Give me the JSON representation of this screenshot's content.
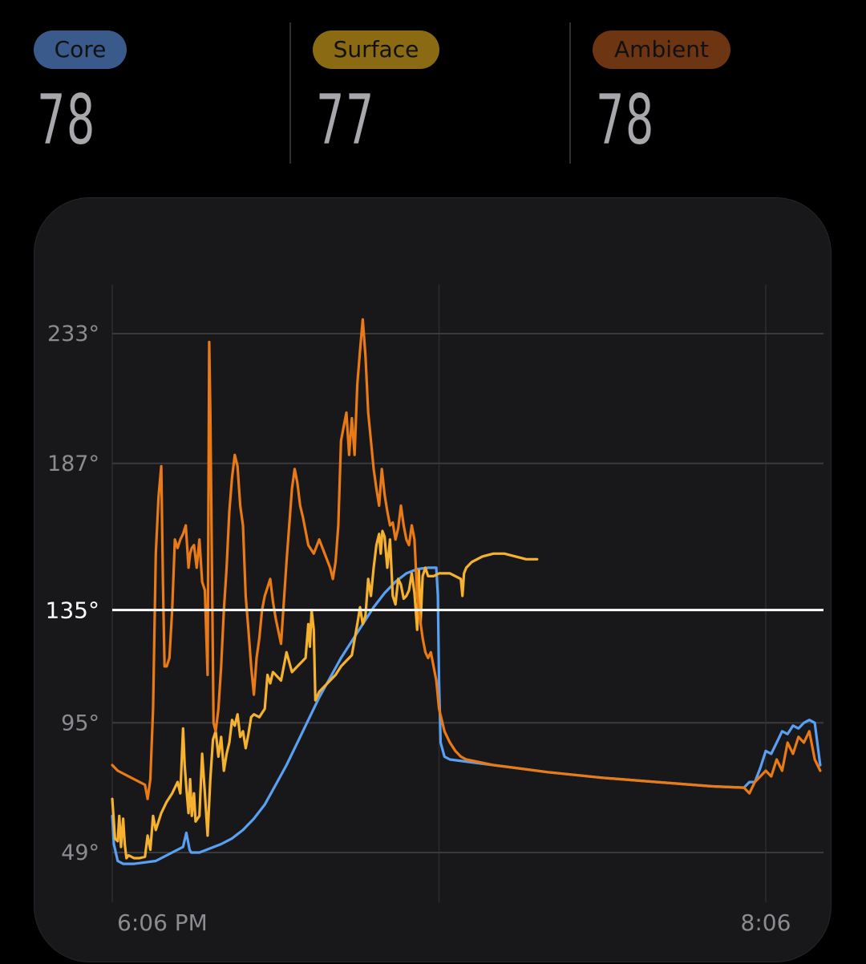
{
  "stats": [
    {
      "label": "Core",
      "value": "78",
      "pill_color": "#3a5a8c"
    },
    {
      "label": "Surface",
      "value": "77",
      "pill_color": "#8a6a12"
    },
    {
      "label": "Ambient",
      "value": "78",
      "pill_color": "#6e3512"
    }
  ],
  "colors": {
    "core": "#5aa0f2",
    "surface": "#f6b22e",
    "ambient": "#ea7a16",
    "target_line": "#ffffff",
    "grid": "#3a3a3e",
    "tick_text": "#8c8c90"
  },
  "chart_data": {
    "type": "line",
    "title": "",
    "xlabel": "",
    "ylabel": "",
    "ylim": [
      38,
      255
    ],
    "y_ticks": [
      {
        "value": 49,
        "label": "49°"
      },
      {
        "value": 95,
        "label": "95°"
      },
      {
        "value": 187,
        "label": "187°"
      },
      {
        "value": 233,
        "label": "233°"
      }
    ],
    "x_tick_labels": [
      "6:06 PM",
      "8:06"
    ],
    "x_unit": "minutes after 6:06 PM",
    "xlim": [
      0,
      130
    ],
    "x_tick_positions": [
      0,
      120
    ],
    "x_gridlines": [
      0,
      60,
      120
    ],
    "target": {
      "value": 135,
      "label": "135°"
    },
    "grid": true,
    "legend": "top",
    "series": [
      {
        "name": "Core",
        "key": "core",
        "points": [
          [
            0,
            62
          ],
          [
            0.3,
            52
          ],
          [
            1,
            46
          ],
          [
            2,
            45
          ],
          [
            4,
            45
          ],
          [
            6,
            45.5
          ],
          [
            8,
            46
          ],
          [
            10,
            48
          ],
          [
            12,
            50
          ],
          [
            13,
            51
          ],
          [
            13.6,
            56
          ],
          [
            14,
            52
          ],
          [
            14.2,
            50
          ],
          [
            14.5,
            49
          ],
          [
            16,
            49
          ],
          [
            18,
            50.5
          ],
          [
            20,
            52
          ],
          [
            22,
            54
          ],
          [
            24,
            57
          ],
          [
            26,
            61
          ],
          [
            28,
            66
          ],
          [
            30,
            73
          ],
          [
            32,
            80
          ],
          [
            34,
            88
          ],
          [
            36,
            96
          ],
          [
            38,
            104
          ],
          [
            40,
            111
          ],
          [
            42,
            118
          ],
          [
            44,
            124
          ],
          [
            46,
            130
          ],
          [
            48,
            136
          ],
          [
            50,
            141
          ],
          [
            52,
            145
          ],
          [
            54,
            148
          ],
          [
            56,
            149.5
          ],
          [
            58,
            150
          ],
          [
            59.5,
            150
          ],
          [
            59.8,
            140
          ],
          [
            60,
            110
          ],
          [
            60.3,
            88
          ],
          [
            61,
            83
          ],
          [
            62,
            82
          ],
          [
            70,
            80
          ],
          [
            80,
            77.5
          ],
          [
            90,
            75.5
          ],
          [
            100,
            74
          ],
          [
            110,
            72.5
          ],
          [
            116,
            72
          ],
          [
            117,
            74
          ],
          [
            118,
            74
          ],
          [
            119,
            79
          ],
          [
            120,
            85
          ],
          [
            121,
            84
          ],
          [
            122,
            88
          ],
          [
            123,
            92
          ],
          [
            124,
            91
          ],
          [
            125,
            94
          ],
          [
            126,
            93
          ],
          [
            127,
            95
          ],
          [
            128,
            96
          ],
          [
            129,
            95
          ],
          [
            130,
            80
          ]
        ]
      },
      {
        "name": "Surface",
        "key": "surface",
        "points": [
          [
            0,
            68
          ],
          [
            0.5,
            54
          ],
          [
            1,
            53
          ],
          [
            1.3,
            62
          ],
          [
            1.6,
            51
          ],
          [
            2,
            61
          ],
          [
            2.3,
            52
          ],
          [
            2.6,
            47
          ],
          [
            3,
            48
          ],
          [
            4,
            47
          ],
          [
            5,
            47
          ],
          [
            6,
            47.5
          ],
          [
            6.5,
            55
          ],
          [
            7,
            50
          ],
          [
            7.5,
            62
          ],
          [
            8,
            57
          ],
          [
            9,
            63
          ],
          [
            10,
            67
          ],
          [
            11,
            70
          ],
          [
            12,
            74
          ],
          [
            12.5,
            70
          ],
          [
            13,
            93
          ],
          [
            13.3,
            80
          ],
          [
            13.6,
            72
          ],
          [
            14,
            63
          ],
          [
            14.3,
            75
          ],
          [
            14.6,
            62
          ],
          [
            15,
            70
          ],
          [
            15.3,
            60
          ],
          [
            16,
            62
          ],
          [
            16.5,
            84
          ],
          [
            17,
            70
          ],
          [
            17.5,
            55
          ],
          [
            18,
            75
          ],
          [
            18.5,
            89
          ],
          [
            19,
            92
          ],
          [
            19.5,
            83
          ],
          [
            20,
            90
          ],
          [
            20.5,
            78
          ],
          [
            21,
            84
          ],
          [
            21.5,
            88
          ],
          [
            22,
            96
          ],
          [
            22.5,
            94
          ],
          [
            23,
            98
          ],
          [
            23.5,
            90
          ],
          [
            24,
            92
          ],
          [
            24.5,
            86
          ],
          [
            25,
            91
          ],
          [
            25.5,
            97
          ],
          [
            26,
            98
          ],
          [
            27,
            97
          ],
          [
            28,
            100
          ],
          [
            28.5,
            112
          ],
          [
            29,
            109
          ],
          [
            29.5,
            113
          ],
          [
            30,
            112
          ],
          [
            31,
            110
          ],
          [
            32,
            120
          ],
          [
            33,
            113
          ],
          [
            34,
            115
          ],
          [
            35,
            117
          ],
          [
            35.5,
            118
          ],
          [
            36,
            130
          ],
          [
            36.3,
            122
          ],
          [
            36.6,
            135
          ],
          [
            37,
            128
          ],
          [
            37.3,
            103
          ],
          [
            38,
            106
          ],
          [
            39,
            108
          ],
          [
            40,
            110
          ],
          [
            41,
            112
          ],
          [
            42,
            115
          ],
          [
            43,
            117
          ],
          [
            44,
            119
          ],
          [
            45,
            130
          ],
          [
            45.5,
            136
          ],
          [
            46,
            130
          ],
          [
            46.5,
            133
          ],
          [
            47,
            146
          ],
          [
            47.5,
            140
          ],
          [
            48,
            150
          ],
          [
            48.5,
            158
          ],
          [
            49,
            162
          ],
          [
            49.3,
            155
          ],
          [
            49.6,
            163
          ],
          [
            50,
            161
          ],
          [
            50.5,
            150
          ],
          [
            51,
            160
          ],
          [
            51.5,
            140
          ],
          [
            52,
            137
          ],
          [
            52.5,
            146
          ],
          [
            53,
            144
          ],
          [
            53.5,
            139
          ],
          [
            54,
            140
          ],
          [
            54.5,
            142
          ],
          [
            55,
            148
          ],
          [
            55.5,
            141
          ],
          [
            56,
            128
          ],
          [
            56.3,
            149
          ],
          [
            56.6,
            130
          ],
          [
            57,
            147
          ],
          [
            57.5,
            150
          ],
          [
            58,
            147
          ],
          [
            59,
            147
          ],
          [
            60,
            148
          ],
          [
            61,
            148
          ],
          [
            62,
            148
          ],
          [
            63,
            147
          ],
          [
            64,
            146
          ],
          [
            64.3,
            140
          ],
          [
            64.6,
            148
          ],
          [
            65,
            150
          ],
          [
            66,
            152
          ],
          [
            67,
            153
          ],
          [
            68,
            154
          ],
          [
            70,
            155
          ],
          [
            72,
            155
          ],
          [
            74,
            154
          ],
          [
            76,
            153
          ],
          [
            78,
            153
          ]
        ]
      },
      {
        "name": "Ambient",
        "key": "ambient",
        "points": [
          [
            0,
            80
          ],
          [
            1,
            78
          ],
          [
            2,
            77
          ],
          [
            3,
            76
          ],
          [
            4,
            75
          ],
          [
            5,
            74
          ],
          [
            6,
            73
          ],
          [
            6.5,
            68
          ],
          [
            7,
            75
          ],
          [
            7.5,
            100
          ],
          [
            8,
            155
          ],
          [
            8.5,
            175
          ],
          [
            9,
            186
          ],
          [
            9.3,
            145
          ],
          [
            9.6,
            115
          ],
          [
            10,
            115
          ],
          [
            10.5,
            118
          ],
          [
            11,
            135
          ],
          [
            11.5,
            160
          ],
          [
            12,
            157
          ],
          [
            12.5,
            160
          ],
          [
            13,
            162
          ],
          [
            13.5,
            165
          ],
          [
            14,
            150
          ],
          [
            14.3,
            155
          ],
          [
            14.6,
            157
          ],
          [
            15,
            158
          ],
          [
            15.5,
            150
          ],
          [
            16,
            160
          ],
          [
            16.5,
            145
          ],
          [
            17,
            142
          ],
          [
            17.5,
            112
          ],
          [
            17.8,
            230
          ],
          [
            18,
            205
          ],
          [
            18.3,
            150
          ],
          [
            18.6,
            95
          ],
          [
            19,
            92
          ],
          [
            19.5,
            100
          ],
          [
            20,
            115
          ],
          [
            20.5,
            135
          ],
          [
            21,
            150
          ],
          [
            21.5,
            170
          ],
          [
            22,
            182
          ],
          [
            22.5,
            190
          ],
          [
            23,
            186
          ],
          [
            23.5,
            172
          ],
          [
            24,
            165
          ],
          [
            24.5,
            140
          ],
          [
            25,
            128
          ],
          [
            25.5,
            115
          ],
          [
            26,
            105
          ],
          [
            26.5,
            118
          ],
          [
            27,
            125
          ],
          [
            27.5,
            135
          ],
          [
            28,
            140
          ],
          [
            28.5,
            143
          ],
          [
            29,
            146
          ],
          [
            29.5,
            138
          ],
          [
            30,
            132
          ],
          [
            31,
            123
          ],
          [
            32,
            152
          ],
          [
            32.5,
            165
          ],
          [
            33,
            178
          ],
          [
            33.5,
            185
          ],
          [
            34,
            180
          ],
          [
            34.5,
            172
          ],
          [
            35,
            168
          ],
          [
            35.5,
            163
          ],
          [
            36,
            158
          ],
          [
            37,
            155
          ],
          [
            38,
            160
          ],
          [
            39,
            155
          ],
          [
            40,
            150
          ],
          [
            40.5,
            146
          ],
          [
            41,
            152
          ],
          [
            41.5,
            165
          ],
          [
            42,
            195
          ],
          [
            42.5,
            200
          ],
          [
            43,
            205
          ],
          [
            43.5,
            190
          ],
          [
            44,
            203
          ],
          [
            44.5,
            190
          ],
          [
            45,
            215
          ],
          [
            45.5,
            227
          ],
          [
            46,
            238
          ],
          [
            46.5,
            225
          ],
          [
            47,
            205
          ],
          [
            47.5,
            195
          ],
          [
            48,
            185
          ],
          [
            48.5,
            178
          ],
          [
            49,
            172
          ],
          [
            49.5,
            185
          ],
          [
            50,
            176
          ],
          [
            50.5,
            170
          ],
          [
            51,
            165
          ],
          [
            51.5,
            166
          ],
          [
            52,
            160
          ],
          [
            52.5,
            164
          ],
          [
            53,
            172
          ],
          [
            53.5,
            165
          ],
          [
            54,
            160
          ],
          [
            54.5,
            158
          ],
          [
            55,
            165
          ],
          [
            55.5,
            160
          ],
          [
            56,
            140
          ],
          [
            56.5,
            132
          ],
          [
            57,
            125
          ],
          [
            57.5,
            120
          ],
          [
            58,
            118
          ],
          [
            58.5,
            120
          ],
          [
            59,
            115
          ],
          [
            59.5,
            110
          ],
          [
            60,
            100
          ],
          [
            61,
            92
          ],
          [
            62,
            88
          ],
          [
            63,
            85
          ],
          [
            64,
            83
          ],
          [
            65,
            82
          ],
          [
            70,
            80
          ],
          [
            80,
            77.5
          ],
          [
            90,
            75.5
          ],
          [
            100,
            74
          ],
          [
            110,
            72.5
          ],
          [
            116,
            72
          ],
          [
            117,
            70
          ],
          [
            117.5,
            72
          ],
          [
            118,
            74
          ],
          [
            119,
            76
          ],
          [
            120,
            78
          ],
          [
            121,
            76
          ],
          [
            122,
            82
          ],
          [
            123,
            78
          ],
          [
            124,
            88
          ],
          [
            125,
            84
          ],
          [
            126,
            90
          ],
          [
            127,
            88
          ],
          [
            128,
            92
          ],
          [
            129,
            82
          ],
          [
            130,
            78
          ]
        ]
      }
    ]
  }
}
